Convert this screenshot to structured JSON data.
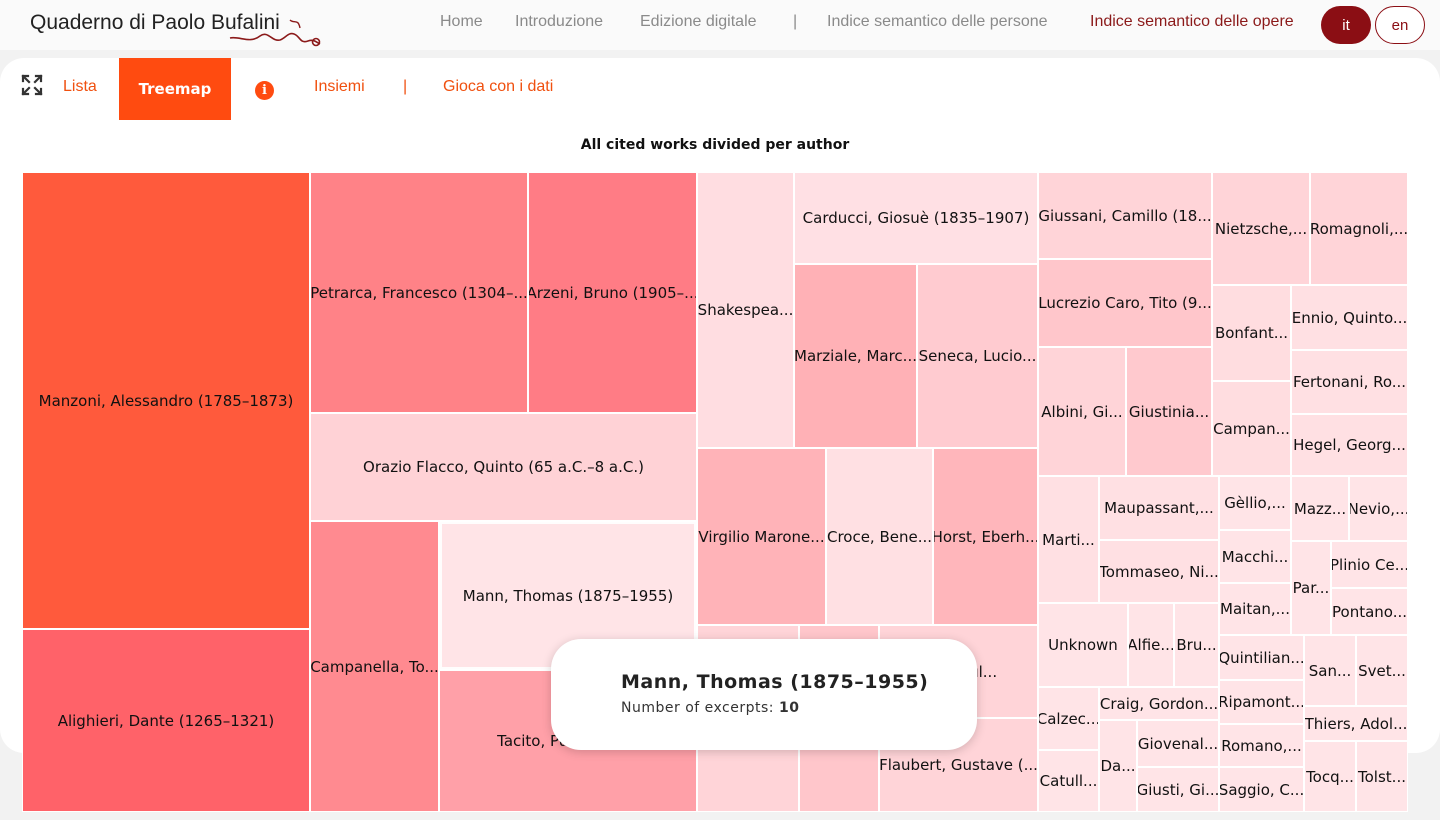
{
  "header": {
    "brand": "Quaderno di Paolo Bufalini",
    "nav": [
      {
        "label": "Home"
      },
      {
        "label": "Introduzione"
      },
      {
        "label": "Edizione digitale"
      },
      {
        "label": "Indice semantico delle persone"
      },
      {
        "label": "Indice semantico delle opere"
      }
    ],
    "separator": "|",
    "languages": [
      "it",
      "en"
    ],
    "active_language": "it"
  },
  "toolbar": {
    "tabs": [
      "Lista",
      "Treemap",
      "Insiemi",
      "Gioca con i dati"
    ],
    "active_tab": "Treemap",
    "separator": "|"
  },
  "chart_data": {
    "type": "treemap",
    "title": "All cited works divided per author",
    "cells": [
      {
        "label": "Manzoni, Alessandro (1785–1873)",
        "color": "#ff5a3c"
      },
      {
        "label": "Alighieri, Dante (1265–1321)",
        "color": "#ff6269"
      },
      {
        "label": "Petrarca, Francesco (1304–...",
        "color": "#ff8287"
      },
      {
        "label": "Arzeni, Bruno (1905–...",
        "color": "#ff7c85"
      },
      {
        "label": "Orazio Flacco, Quinto (65 a.C.–8 a.C.)",
        "color": "#ffd2d6"
      },
      {
        "label": "Campanella, To...",
        "color": "#ff8a90"
      },
      {
        "label": "Mann, Thomas (1875–1955)",
        "color": "#ffe4e7"
      },
      {
        "label": "Tacito, Publio Cor...",
        "color": "#ffa0a8"
      },
      {
        "label": "Shakespea...",
        "color": "#ffdde1"
      },
      {
        "label": "Carducci, Giosuè (1835–1907)",
        "color": "#ffe0e4"
      },
      {
        "label": "Marziale, Marc...",
        "color": "#ffb1b6"
      },
      {
        "label": "Seneca, Lucio...",
        "color": "#ffcbd0"
      },
      {
        "label": "Virgilio Marone...",
        "color": "#ffb3b8"
      },
      {
        "label": "Croce, Bene...",
        "color": "#ffe0e3"
      },
      {
        "label": "Horst, Eberh...",
        "color": "#ffb6bb"
      },
      {
        "label": "...rco Tul...",
        "color": "#ffd4d8"
      },
      {
        "label": "Flaubert, Gustave (...",
        "color": "#ffd4d8"
      },
      {
        "label": "Giussani, Camillo (18...",
        "color": "#ffd4d8"
      },
      {
        "label": "Lucrezio Caro, Tito (9...",
        "color": "#ffc6cb"
      },
      {
        "label": "Albini, Gi...",
        "color": "#ffd4d8"
      },
      {
        "label": "Giustinia...",
        "color": "#ffc9ce"
      },
      {
        "label": "Nietzsche,...",
        "color": "#ffd4d8"
      },
      {
        "label": "Romagnoli,...",
        "color": "#ffd4d8"
      },
      {
        "label": "Bonfant...",
        "color": "#ffdde0"
      },
      {
        "label": "Ennio, Quinto...",
        "color": "#ffe0e3"
      },
      {
        "label": "Fertonani, Ro...",
        "color": "#ffe0e3"
      },
      {
        "label": "Campan...",
        "color": "#ffdde0"
      },
      {
        "label": "Hegel, Georg...",
        "color": "#ffe0e3"
      },
      {
        "label": "Marti...",
        "color": "#ffe0e3"
      },
      {
        "label": "Maupassant,...",
        "color": "#ffe0e3"
      },
      {
        "label": "Tommaseo, Ni...",
        "color": "#ffe0e3"
      },
      {
        "label": "Gèllio,...",
        "color": "#ffe4e7"
      },
      {
        "label": "Macchi...",
        "color": "#ffe4e7"
      },
      {
        "label": "Maitan,...",
        "color": "#ffe4e7"
      },
      {
        "label": "Mazz...",
        "color": "#ffe4e7"
      },
      {
        "label": "Nevio,...",
        "color": "#ffe4e7"
      },
      {
        "label": "Par...",
        "color": "#ffe4e7"
      },
      {
        "label": "Plinio Ce...",
        "color": "#ffe4e7"
      },
      {
        "label": "Pontano...",
        "color": "#ffe4e7"
      },
      {
        "label": "Unknown",
        "color": "#ffe4e7"
      },
      {
        "label": "Alfie...",
        "color": "#ffe4e7"
      },
      {
        "label": "Bru...",
        "color": "#ffe4e7"
      },
      {
        "label": "Quintilian...",
        "color": "#ffe4e7"
      },
      {
        "label": "San...",
        "color": "#ffe4e7"
      },
      {
        "label": "Svet...",
        "color": "#ffe4e7"
      },
      {
        "label": "Calzec...",
        "color": "#ffe4e7"
      },
      {
        "label": "Craig, Gordon...",
        "color": "#ffe4e7"
      },
      {
        "label": "Ripamont...",
        "color": "#ffe4e7"
      },
      {
        "label": "Thiers, Adol...",
        "color": "#ffe4e7"
      },
      {
        "label": "Giovenal...",
        "color": "#ffe4e7"
      },
      {
        "label": "Da...",
        "color": "#ffe4e7"
      },
      {
        "label": "Romano,...",
        "color": "#ffe4e7"
      },
      {
        "label": "Catull...",
        "color": "#ffe4e7"
      },
      {
        "label": "Giusti, Gi...",
        "color": "#ffe4e7"
      },
      {
        "label": "Saggio, C...",
        "color": "#ffe4e7"
      },
      {
        "label": "Tocq...",
        "color": "#ffe4e7"
      },
      {
        "label": "Tolst...",
        "color": "#ffe4e7"
      },
      {
        "label": "",
        "color": "#ffd4d8"
      },
      {
        "label": "",
        "color": "#ffc6cb"
      },
      {
        "label": "",
        "color": "#ffd8dc"
      }
    ],
    "hovered": "Mann, Thomas (1875–1955)"
  },
  "tooltip": {
    "title": "Mann, Thomas (1875–1955)",
    "label": "Number of excerpts:",
    "value": "10"
  }
}
